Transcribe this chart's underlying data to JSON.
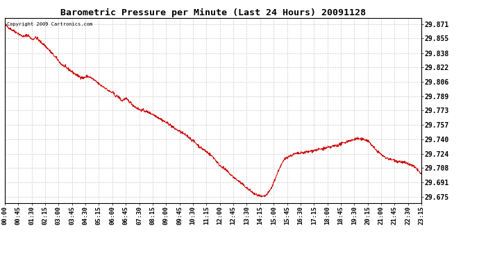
{
  "title": "Barometric Pressure per Minute (Last 24 Hours) 20091128",
  "copyright": "Copyright 2009 Cartronics.com",
  "line_color": "#cc0000",
  "background_color": "#ffffff",
  "grid_color": "#cccccc",
  "yticks": [
    29.675,
    29.691,
    29.708,
    29.724,
    29.74,
    29.757,
    29.773,
    29.789,
    29.806,
    29.822,
    29.838,
    29.855,
    29.871
  ],
  "ylim": [
    29.668,
    29.878
  ],
  "xtick_labels": [
    "00:00",
    "00:45",
    "01:30",
    "02:15",
    "03:00",
    "03:45",
    "04:30",
    "05:15",
    "06:00",
    "06:45",
    "07:30",
    "08:15",
    "09:00",
    "09:45",
    "10:30",
    "11:15",
    "12:00",
    "12:45",
    "13:30",
    "14:15",
    "15:00",
    "15:45",
    "16:30",
    "17:15",
    "18:00",
    "18:45",
    "19:30",
    "20:15",
    "21:00",
    "21:45",
    "22:30",
    "23:15"
  ],
  "keypoints": [
    [
      0.0,
      29.871
    ],
    [
      0.005,
      29.869
    ],
    [
      0.01,
      29.867
    ],
    [
      0.02,
      29.864
    ],
    [
      0.031,
      29.861
    ],
    [
      0.04,
      29.858
    ],
    [
      0.047,
      29.857
    ],
    [
      0.052,
      29.859
    ],
    [
      0.058,
      29.858
    ],
    [
      0.062,
      29.855
    ],
    [
      0.068,
      29.854
    ],
    [
      0.073,
      29.856
    ],
    [
      0.078,
      29.855
    ],
    [
      0.083,
      29.852
    ],
    [
      0.094,
      29.848
    ],
    [
      0.104,
      29.843
    ],
    [
      0.115,
      29.837
    ],
    [
      0.125,
      29.832
    ],
    [
      0.135,
      29.826
    ],
    [
      0.146,
      29.822
    ],
    [
      0.156,
      29.819
    ],
    [
      0.167,
      29.815
    ],
    [
      0.177,
      29.812
    ],
    [
      0.188,
      29.81
    ],
    [
      0.198,
      29.812
    ],
    [
      0.208,
      29.81
    ],
    [
      0.213,
      29.808
    ],
    [
      0.219,
      29.806
    ],
    [
      0.229,
      29.802
    ],
    [
      0.24,
      29.799
    ],
    [
      0.25,
      29.795
    ],
    [
      0.26,
      29.793
    ],
    [
      0.265,
      29.79
    ],
    [
      0.271,
      29.789
    ],
    [
      0.276,
      29.787
    ],
    [
      0.281,
      29.784
    ],
    [
      0.287,
      29.786
    ],
    [
      0.292,
      29.786
    ],
    [
      0.297,
      29.784
    ],
    [
      0.302,
      29.782
    ],
    [
      0.308,
      29.779
    ],
    [
      0.313,
      29.777
    ],
    [
      0.323,
      29.774
    ],
    [
      0.333,
      29.773
    ],
    [
      0.344,
      29.771
    ],
    [
      0.354,
      29.769
    ],
    [
      0.365,
      29.766
    ],
    [
      0.375,
      29.763
    ],
    [
      0.385,
      29.76
    ],
    [
      0.396,
      29.757
    ],
    [
      0.406,
      29.753
    ],
    [
      0.417,
      29.75
    ],
    [
      0.427,
      29.747
    ],
    [
      0.438,
      29.744
    ],
    [
      0.448,
      29.74
    ],
    [
      0.458,
      29.736
    ],
    [
      0.469,
      29.731
    ],
    [
      0.479,
      29.728
    ],
    [
      0.49,
      29.724
    ],
    [
      0.497,
      29.721
    ],
    [
      0.5,
      29.72
    ],
    [
      0.505,
      29.717
    ],
    [
      0.51,
      29.714
    ],
    [
      0.515,
      29.711
    ],
    [
      0.521,
      29.709
    ],
    [
      0.526,
      29.707
    ],
    [
      0.531,
      29.705
    ],
    [
      0.536,
      29.703
    ],
    [
      0.542,
      29.7
    ],
    [
      0.547,
      29.698
    ],
    [
      0.552,
      29.696
    ],
    [
      0.557,
      29.694
    ],
    [
      0.563,
      29.692
    ],
    [
      0.568,
      29.69
    ],
    [
      0.573,
      29.688
    ],
    [
      0.578,
      29.686
    ],
    [
      0.583,
      29.684
    ],
    [
      0.588,
      29.682
    ],
    [
      0.594,
      29.68
    ],
    [
      0.599,
      29.678
    ],
    [
      0.604,
      29.677
    ],
    [
      0.609,
      29.676
    ],
    [
      0.615,
      29.675
    ],
    [
      0.62,
      29.675
    ],
    [
      0.622,
      29.675
    ],
    [
      0.625,
      29.676
    ],
    [
      0.63,
      29.678
    ],
    [
      0.635,
      29.681
    ],
    [
      0.641,
      29.686
    ],
    [
      0.646,
      29.692
    ],
    [
      0.651,
      29.698
    ],
    [
      0.656,
      29.704
    ],
    [
      0.661,
      29.709
    ],
    [
      0.667,
      29.714
    ],
    [
      0.672,
      29.718
    ],
    [
      0.677,
      29.72
    ],
    [
      0.682,
      29.721
    ],
    [
      0.688,
      29.722
    ],
    [
      0.693,
      29.723
    ],
    [
      0.698,
      29.724
    ],
    [
      0.703,
      29.724
    ],
    [
      0.708,
      29.724
    ],
    [
      0.714,
      29.725
    ],
    [
      0.719,
      29.725
    ],
    [
      0.724,
      29.726
    ],
    [
      0.729,
      29.726
    ],
    [
      0.735,
      29.727
    ],
    [
      0.74,
      29.727
    ],
    [
      0.745,
      29.728
    ],
    [
      0.75,
      29.728
    ],
    [
      0.755,
      29.729
    ],
    [
      0.76,
      29.729
    ],
    [
      0.766,
      29.73
    ],
    [
      0.771,
      29.73
    ],
    [
      0.776,
      29.731
    ],
    [
      0.781,
      29.731
    ],
    [
      0.786,
      29.732
    ],
    [
      0.792,
      29.733
    ],
    [
      0.797,
      29.733
    ],
    [
      0.802,
      29.734
    ],
    [
      0.807,
      29.735
    ],
    [
      0.813,
      29.736
    ],
    [
      0.818,
      29.737
    ],
    [
      0.823,
      29.738
    ],
    [
      0.828,
      29.739
    ],
    [
      0.833,
      29.739
    ],
    [
      0.838,
      29.74
    ],
    [
      0.844,
      29.741
    ],
    [
      0.849,
      29.741
    ],
    [
      0.854,
      29.74
    ],
    [
      0.859,
      29.74
    ],
    [
      0.865,
      29.74
    ],
    [
      0.87,
      29.739
    ],
    [
      0.875,
      29.737
    ],
    [
      0.88,
      29.734
    ],
    [
      0.885,
      29.731
    ],
    [
      0.891,
      29.728
    ],
    [
      0.896,
      29.726
    ],
    [
      0.901,
      29.724
    ],
    [
      0.906,
      29.722
    ],
    [
      0.911,
      29.72
    ],
    [
      0.917,
      29.719
    ],
    [
      0.922,
      29.718
    ],
    [
      0.927,
      29.717
    ],
    [
      0.932,
      29.717
    ],
    [
      0.938,
      29.716
    ],
    [
      0.943,
      29.715
    ],
    [
      0.948,
      29.715
    ],
    [
      0.953,
      29.714
    ],
    [
      0.958,
      29.714
    ],
    [
      0.963,
      29.713
    ],
    [
      0.969,
      29.712
    ],
    [
      0.974,
      29.711
    ],
    [
      0.979,
      29.71
    ],
    [
      0.984,
      29.708
    ],
    [
      0.99,
      29.706
    ],
    [
      0.995,
      29.703
    ],
    [
      1.0,
      29.7
    ]
  ]
}
